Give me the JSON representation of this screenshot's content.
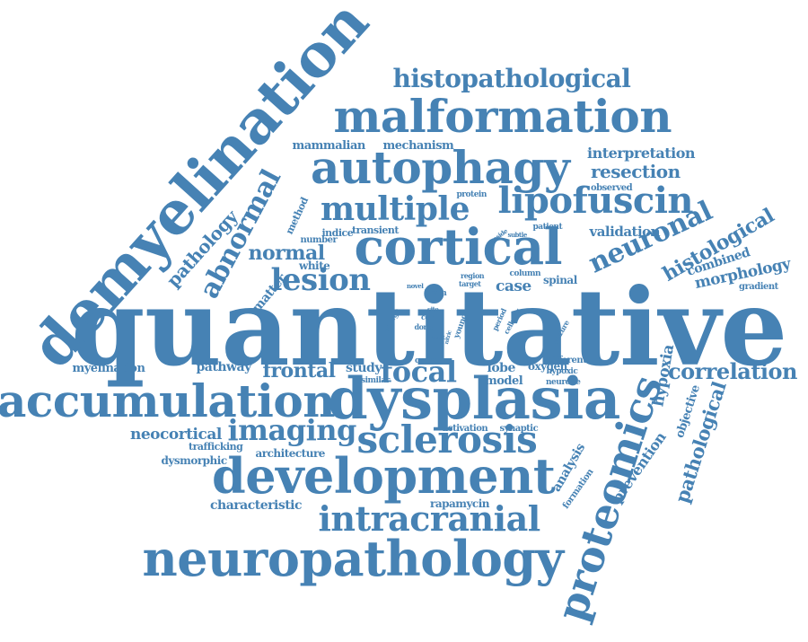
{
  "color": "#4682b4",
  "words": [
    {
      "text": "quantitative"
    },
    {
      "text": "demyelination"
    },
    {
      "text": "dysplasia"
    },
    {
      "text": "accumulation"
    },
    {
      "text": "neuropathology"
    },
    {
      "text": "development"
    },
    {
      "text": "malformation"
    },
    {
      "text": "proteomics"
    },
    {
      "text": "autophagy"
    },
    {
      "text": "cortical"
    },
    {
      "text": "sclerosis"
    },
    {
      "text": "lipofuscin"
    },
    {
      "text": "intracranial"
    },
    {
      "text": "multiple"
    },
    {
      "text": "histopathological"
    },
    {
      "text": "lesion"
    },
    {
      "text": "abnormal"
    },
    {
      "text": "neuronal"
    },
    {
      "text": "focal"
    },
    {
      "text": "imaging"
    },
    {
      "text": "histological"
    },
    {
      "text": "correlation"
    },
    {
      "text": "pathological"
    },
    {
      "text": "frontal"
    },
    {
      "text": "normal"
    },
    {
      "text": "pathology"
    },
    {
      "text": "resection"
    },
    {
      "text": "morphology"
    },
    {
      "text": "prevention"
    },
    {
      "text": "hypoxia"
    },
    {
      "text": "analysis"
    },
    {
      "text": "interpretation"
    },
    {
      "text": "validation"
    },
    {
      "text": "case"
    },
    {
      "text": "neocortical"
    },
    {
      "text": "characteristic"
    },
    {
      "text": "mammalian"
    },
    {
      "text": "mechanism"
    },
    {
      "text": "combined"
    },
    {
      "text": "study"
    },
    {
      "text": "objective"
    },
    {
      "text": "pathway"
    },
    {
      "text": "myelination"
    },
    {
      "text": "lobe"
    },
    {
      "text": "oxygen"
    },
    {
      "text": "rapamycin"
    },
    {
      "text": "matter"
    },
    {
      "text": "dysmorphic"
    },
    {
      "text": "architecture"
    },
    {
      "text": "trafficking"
    },
    {
      "text": "model"
    },
    {
      "text": "spinal"
    },
    {
      "text": "method"
    },
    {
      "text": "white"
    },
    {
      "text": "observed"
    },
    {
      "text": "transient"
    },
    {
      "text": "number"
    },
    {
      "text": "indice"
    },
    {
      "text": "different"
    },
    {
      "text": "hypoxic"
    },
    {
      "text": "neurone"
    },
    {
      "text": "formation"
    },
    {
      "text": "gradient"
    },
    {
      "text": "activation"
    },
    {
      "text": "synaptic"
    },
    {
      "text": "protein"
    },
    {
      "text": "patient"
    },
    {
      "text": "column"
    },
    {
      "text": "brain"
    },
    {
      "text": "cause"
    },
    {
      "text": "similar"
    },
    {
      "text": "energy"
    },
    {
      "text": "cord"
    },
    {
      "text": "dorsal"
    },
    {
      "text": "site"
    },
    {
      "text": "young"
    },
    {
      "text": "novel"
    },
    {
      "text": "region"
    },
    {
      "text": "target"
    },
    {
      "text": "subtle"
    },
    {
      "text": "reside"
    },
    {
      "text": "period"
    },
    {
      "text": "cellular"
    },
    {
      "text": "seizure"
    },
    {
      "text": "result"
    },
    {
      "text": "nitric"
    }
  ]
}
